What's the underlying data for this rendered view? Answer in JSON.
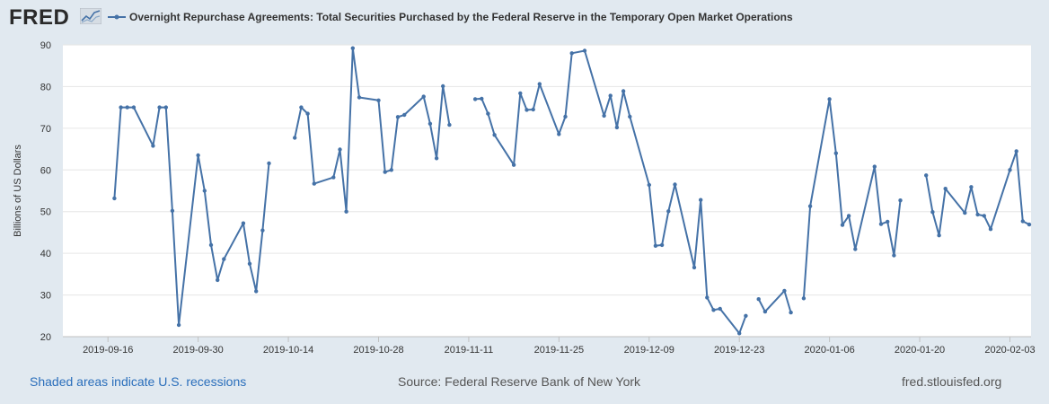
{
  "header": {
    "logo_text": "FRED",
    "legend_label": "Overnight Repurchase Agreements: Total Securities Purchased by the Federal Reserve in the Temporary Open Market Operations"
  },
  "footer": {
    "recessions_note": "Shaded areas indicate U.S. recessions",
    "source": "Source: Federal Reserve Bank of New York",
    "site": "fred.stlouisfed.org"
  },
  "colors": {
    "series": "#4572a7",
    "plot_bg": "#ffffff",
    "page_bg": "#e1e9f0",
    "grid": "#e6e6e6"
  },
  "chart_data": {
    "type": "line",
    "title": "Overnight Repurchase Agreements: Total Securities Purchased by the Federal Reserve in the Temporary Open Market Operations",
    "xlabel": "",
    "ylabel": "Billions of US Dollars",
    "ylim": [
      20,
      90
    ],
    "yticks": [
      20,
      30,
      40,
      50,
      60,
      70,
      80,
      90
    ],
    "xlim": [
      "2019-09-09",
      "2020-02-06"
    ],
    "xticks": [
      "2019-09-16",
      "2019-09-30",
      "2019-10-14",
      "2019-10-28",
      "2019-11-11",
      "2019-11-25",
      "2019-12-09",
      "2019-12-23",
      "2020-01-06",
      "2020-01-20",
      "2020-02-03"
    ],
    "grid": true,
    "series": [
      {
        "name": "Overnight Repurchase Agreements",
        "segments": [
          [
            [
              "2019-09-17",
              53.2
            ],
            [
              "2019-09-18",
              75.0
            ],
            [
              "2019-09-19",
              75.0
            ],
            [
              "2019-09-20",
              75.0
            ],
            [
              "2019-09-23",
              65.8
            ],
            [
              "2019-09-24",
              75.0
            ],
            [
              "2019-09-25",
              75.0
            ],
            [
              "2019-09-26",
              50.2
            ],
            [
              "2019-09-27",
              22.8
            ],
            [
              "2019-09-30",
              63.5
            ],
            [
              "2019-10-01",
              55.0
            ],
            [
              "2019-10-02",
              42.0
            ],
            [
              "2019-10-03",
              33.6
            ],
            [
              "2019-10-04",
              38.6
            ],
            [
              "2019-10-07",
              47.2
            ],
            [
              "2019-10-08",
              37.5
            ],
            [
              "2019-10-09",
              30.9
            ],
            [
              "2019-10-10",
              45.5
            ],
            [
              "2019-10-11",
              61.6
            ]
          ],
          [
            [
              "2019-10-15",
              67.7
            ],
            [
              "2019-10-16",
              75.0
            ],
            [
              "2019-10-17",
              73.5
            ],
            [
              "2019-10-18",
              56.7
            ],
            [
              "2019-10-21",
              58.2
            ],
            [
              "2019-10-22",
              64.9
            ],
            [
              "2019-10-23",
              50.0
            ],
            [
              "2019-10-24",
              89.2
            ],
            [
              "2019-10-25",
              77.4
            ],
            [
              "2019-10-28",
              76.7
            ],
            [
              "2019-10-29",
              59.5
            ],
            [
              "2019-10-30",
              60.0
            ],
            [
              "2019-10-31",
              72.7
            ],
            [
              "2019-11-01",
              73.2
            ],
            [
              "2019-11-04",
              77.6
            ],
            [
              "2019-11-05",
              71.1
            ],
            [
              "2019-11-06",
              62.8
            ],
            [
              "2019-11-07",
              80.1
            ],
            [
              "2019-11-08",
              70.8
            ]
          ],
          [
            [
              "2019-11-12",
              77.0
            ],
            [
              "2019-11-13",
              77.1
            ],
            [
              "2019-11-14",
              73.5
            ],
            [
              "2019-11-15",
              68.4
            ],
            [
              "2019-11-18",
              61.2
            ],
            [
              "2019-11-19",
              78.4
            ],
            [
              "2019-11-20",
              74.4
            ],
            [
              "2019-11-21",
              74.5
            ],
            [
              "2019-11-22",
              80.6
            ],
            [
              "2019-11-25",
              68.6
            ],
            [
              "2019-11-26",
              72.8
            ],
            [
              "2019-11-27",
              88.0
            ],
            [
              "2019-11-29",
              88.6
            ],
            [
              "2019-12-02",
              73.0
            ],
            [
              "2019-12-03",
              77.8
            ],
            [
              "2019-12-04",
              70.2
            ],
            [
              "2019-12-05",
              78.9
            ],
            [
              "2019-12-06",
              72.8
            ],
            [
              "2019-12-09",
              56.4
            ],
            [
              "2019-12-10",
              41.8
            ],
            [
              "2019-12-11",
              42.0
            ],
            [
              "2019-12-12",
              50.1
            ],
            [
              "2019-12-13",
              56.5
            ],
            [
              "2019-12-16",
              36.6
            ],
            [
              "2019-12-17",
              52.8
            ],
            [
              "2019-12-18",
              29.4
            ],
            [
              "2019-12-19",
              26.4
            ],
            [
              "2019-12-20",
              26.7
            ],
            [
              "2019-12-23",
              20.8
            ],
            [
              "2019-12-24",
              25.0
            ]
          ],
          [
            [
              "2019-12-26",
              29.0
            ],
            [
              "2019-12-27",
              26.0
            ],
            [
              "2019-12-30",
              31.0
            ],
            [
              "2019-12-31",
              25.8
            ]
          ],
          [
            [
              "2020-01-02",
              29.2
            ],
            [
              "2020-01-03",
              51.3
            ],
            [
              "2020-01-06",
              77.0
            ],
            [
              "2020-01-07",
              64.0
            ],
            [
              "2020-01-08",
              46.8
            ],
            [
              "2020-01-09",
              49.0
            ],
            [
              "2020-01-10",
              41.0
            ],
            [
              "2020-01-13",
              60.8
            ],
            [
              "2020-01-14",
              47.0
            ],
            [
              "2020-01-15",
              47.6
            ],
            [
              "2020-01-16",
              39.5
            ],
            [
              "2020-01-17",
              52.7
            ]
          ],
          [
            [
              "2020-01-21",
              58.7
            ],
            [
              "2020-01-22",
              49.9
            ],
            [
              "2020-01-23",
              44.3
            ],
            [
              "2020-01-24",
              55.5
            ],
            [
              "2020-01-27",
              49.7
            ],
            [
              "2020-01-28",
              55.9
            ],
            [
              "2020-01-29",
              49.3
            ],
            [
              "2020-01-30",
              49.0
            ],
            [
              "2020-01-31",
              45.8
            ],
            [
              "2020-02-03",
              60.0
            ],
            [
              "2020-02-04",
              64.5
            ],
            [
              "2020-02-05",
              47.7
            ],
            [
              "2020-02-06",
              46.9
            ]
          ]
        ]
      }
    ]
  }
}
